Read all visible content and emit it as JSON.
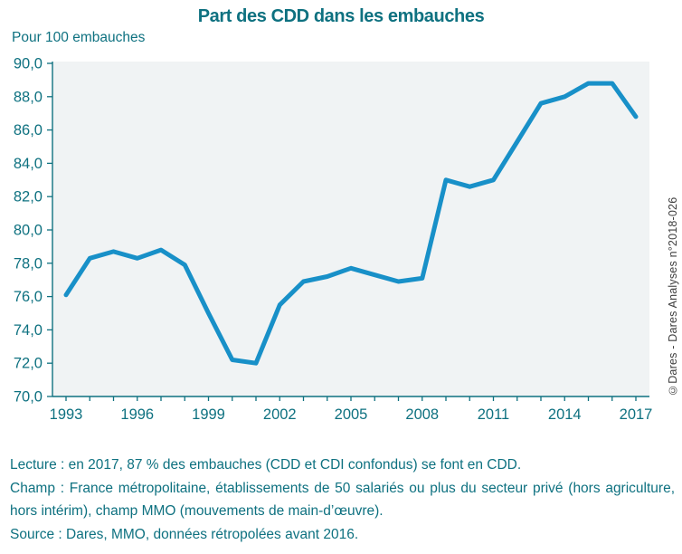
{
  "header": {
    "title": "Part des CDD dans les embauches",
    "unit_label": "Pour 100 embauches"
  },
  "chart_data": {
    "type": "line",
    "title": "Part des CDD dans les embauches",
    "ylabel": "Pour 100 embauches",
    "x": [
      1993,
      1994,
      1995,
      1996,
      1997,
      1998,
      1999,
      2000,
      2001,
      2002,
      2003,
      2004,
      2005,
      2006,
      2007,
      2008,
      2009,
      2010,
      2011,
      2012,
      2013,
      2014,
      2015,
      2016,
      2017
    ],
    "series": [
      {
        "name": "Part des CDD dans les embauches",
        "values": [
          76.1,
          78.3,
          78.7,
          78.3,
          78.8,
          77.9,
          75.0,
          72.2,
          72.0,
          75.5,
          76.9,
          77.2,
          77.7,
          77.3,
          76.9,
          77.1,
          83.0,
          82.6,
          83.0,
          85.3,
          87.6,
          88.0,
          88.8,
          88.8,
          86.8
        ]
      }
    ],
    "ylim": [
      70,
      90
    ],
    "y_tick_values": [
      70,
      72,
      74,
      76,
      78,
      80,
      82,
      84,
      86,
      88,
      90
    ],
    "y_tick_labels": [
      "70,0",
      "72,0",
      "74,0",
      "76,0",
      "78,0",
      "80,0",
      "82,0",
      "84,0",
      "86,0",
      "88,0",
      "90,0"
    ],
    "x_labeled_years": [
      1993,
      1996,
      1999,
      2002,
      2005,
      2008,
      2011,
      2014,
      2017
    ],
    "grid": false,
    "legend_position": "none",
    "line_color": "#1890c8",
    "plot_bg_color": "#f0f3f4",
    "axis_color": "#0e7180",
    "tick_label_color": "#0e7180"
  },
  "side_note": "©Dares - Dares Analyses n°2018-026",
  "notes": {
    "lecture": "Lecture : en 2017, 87 % des embauches (CDD et CDI confondus) se font en CDD.",
    "champ": "Champ : France métropolitaine, établissements de 50 salariés ou plus du secteur privé (hors agriculture, hors intérim), champ MMO (mouvements de main-d’œuvre).",
    "source": "Source : Dares, MMO, données rétropolées avant 2016."
  }
}
